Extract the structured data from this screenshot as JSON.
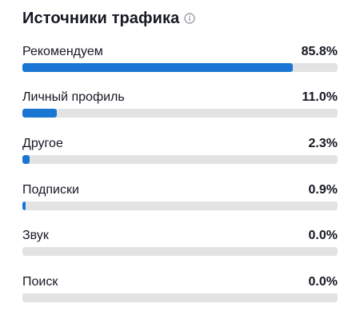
{
  "header": {
    "title": "Источники трафика",
    "info_icon": "info-circle-icon"
  },
  "colors": {
    "bar_fill": "#1976D2",
    "bar_track": "#E3E3E4"
  },
  "sources": [
    {
      "label": "Рекомендуем",
      "value": "85.8%",
      "percent": 85.8
    },
    {
      "label": "Личный профиль",
      "value": "11.0%",
      "percent": 11.0
    },
    {
      "label": "Другое",
      "value": "2.3%",
      "percent": 2.3
    },
    {
      "label": "Подписки",
      "value": "0.9%",
      "percent": 0.9
    },
    {
      "label": "Звук",
      "value": "0.0%",
      "percent": 0.0
    },
    {
      "label": "Поиск",
      "value": "0.0%",
      "percent": 0.0
    }
  ]
}
